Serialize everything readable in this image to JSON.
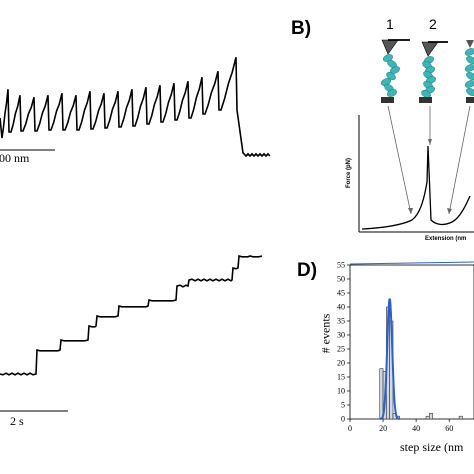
{
  "panels": {
    "b_label": "B)",
    "d_label": "D)"
  },
  "panel_a": {
    "scale_label": "00 nm"
  },
  "panel_c": {
    "scale_label": "2 s"
  },
  "panel_b": {
    "cantilever_1": "1",
    "cantilever_2": "2",
    "ylabel": "Force (pN)",
    "xlabel": "Extension (nm"
  },
  "chart_data": {
    "type": "bar",
    "panel": "D",
    "xlabel": "step size (nm",
    "ylabel": "# events",
    "xlim": [
      0,
      75
    ],
    "ylim": [
      0,
      55
    ],
    "xticks": [
      0,
      20,
      40,
      60
    ],
    "yticks": [
      0,
      5,
      10,
      15,
      20,
      25,
      30,
      35,
      40,
      45,
      50,
      55
    ],
    "bin_width": 2,
    "bins": [
      18,
      20,
      22,
      24,
      26,
      28,
      46,
      48,
      66
    ],
    "values": [
      18,
      17,
      40,
      35,
      2,
      1,
      1,
      2,
      1
    ],
    "fit": {
      "type": "gaussian",
      "mean": 24,
      "sigma": 1.5,
      "peak": 43,
      "color": "#2a62c9"
    },
    "bar_color": "#d3d9e3"
  },
  "colors": {
    "fit_line": "#2a62c9",
    "molecule": "#3fb5b5",
    "bar_fill": "#d3d9e3"
  }
}
